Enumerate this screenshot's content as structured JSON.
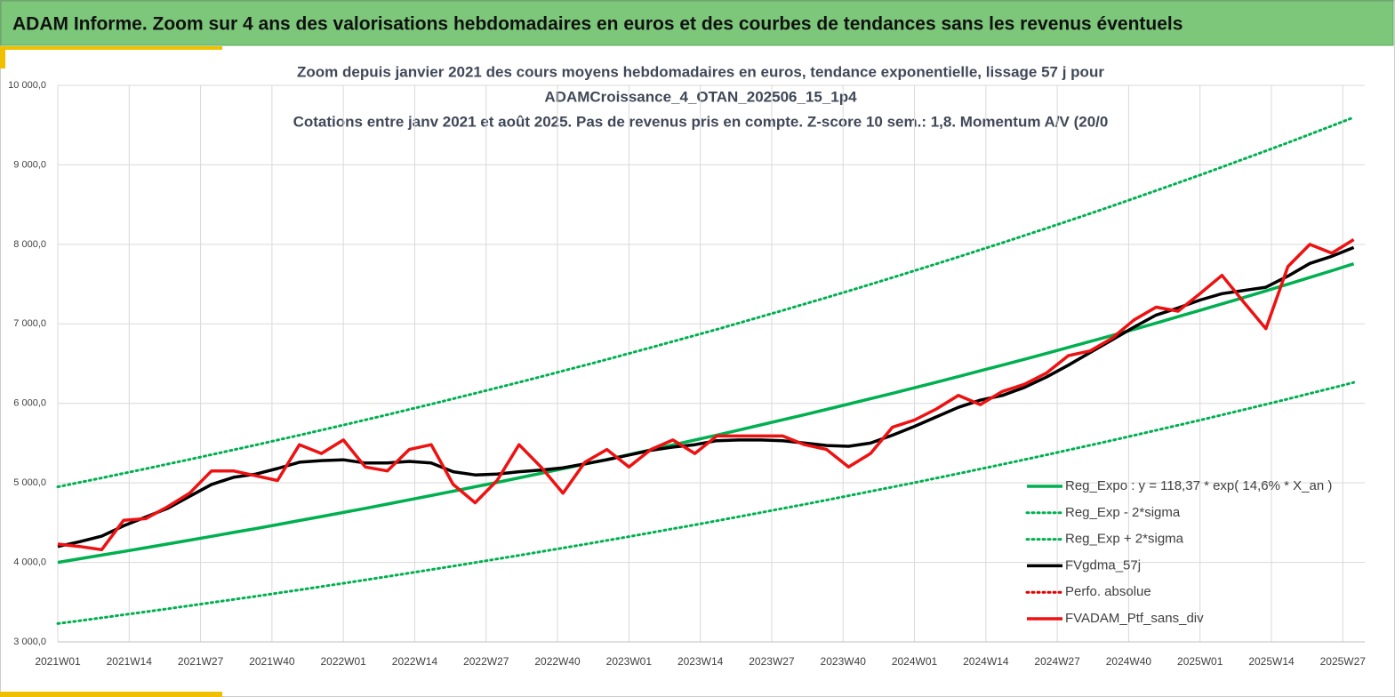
{
  "header": {
    "title": "ADAM Informe. Zoom sur 4 ans des valorisations hebdomadaires en euros et des courbes de tendances sans les revenus éventuels"
  },
  "chart_data": {
    "type": "line",
    "title": [
      "Zoom depuis janvier 2021 des cours moyens hebdomadaires  en euros, tendance exponentielle, lissage 57 j pour",
      "ADAMCroissance_4_OTAN_202506_15_1p4",
      "Cotations entre janv 2021 et août 2025. Pas de revenus pris en compte. Z-score 10 sem.: 1,8. Momentum A/V (20/0"
    ],
    "x": [
      0,
      4,
      8,
      12,
      16,
      20,
      24,
      28,
      32,
      36,
      40,
      44,
      48,
      52,
      56,
      60,
      64,
      68,
      72,
      76,
      80,
      84,
      88,
      92,
      96,
      100,
      104,
      108,
      112,
      116,
      120,
      124,
      128,
      132,
      136,
      140,
      144,
      148,
      152,
      156,
      160,
      164,
      168,
      172,
      176,
      180,
      184,
      188,
      192,
      196,
      200,
      204,
      208,
      212,
      216,
      220,
      224,
      228,
      232,
      236
    ],
    "xlim": [
      0,
      238
    ],
    "xticks": [
      {
        "value": 0,
        "label": "2021W01"
      },
      {
        "value": 13,
        "label": "2021W14"
      },
      {
        "value": 26,
        "label": "2021W27"
      },
      {
        "value": 39,
        "label": "2021W40"
      },
      {
        "value": 52,
        "label": "2022W01"
      },
      {
        "value": 65,
        "label": "2022W14"
      },
      {
        "value": 78,
        "label": "2022W27"
      },
      {
        "value": 91,
        "label": "2022W40"
      },
      {
        "value": 104,
        "label": "2023W01"
      },
      {
        "value": 117,
        "label": "2023W14"
      },
      {
        "value": 130,
        "label": "2023W27"
      },
      {
        "value": 143,
        "label": "2023W40"
      },
      {
        "value": 156,
        "label": "2024W01"
      },
      {
        "value": 169,
        "label": "2024W14"
      },
      {
        "value": 182,
        "label": "2024W27"
      },
      {
        "value": 195,
        "label": "2024W40"
      },
      {
        "value": 208,
        "label": "2025W01"
      },
      {
        "value": 221,
        "label": "2025W14"
      },
      {
        "value": 234,
        "label": "2025W27"
      }
    ],
    "ylim": [
      3000,
      10000
    ],
    "yticks": [
      {
        "value": 3000,
        "label": "3 000,0"
      },
      {
        "value": 4000,
        "label": "4 000,0"
      },
      {
        "value": 5000,
        "label": "5 000,0"
      },
      {
        "value": 6000,
        "label": "6 000,0"
      },
      {
        "value": 7000,
        "label": "7 000,0"
      },
      {
        "value": 8000,
        "label": "8 000,0"
      },
      {
        "value": 9000,
        "label": "9 000,0"
      },
      {
        "value": 10000,
        "label": "10 000,0"
      }
    ],
    "grid": true,
    "legend": "lower-right",
    "series": [
      {
        "name": "Reg_Expo : y = 118,37 * exp( 14,6% *  X_an )",
        "color": "#00b050",
        "style": "solid",
        "values": [
          4000,
          4045,
          4091,
          4137,
          4184,
          4231,
          4279,
          4327,
          4376,
          4425,
          4475,
          4526,
          4577,
          4628,
          4680,
          4733,
          4787,
          4841,
          4895,
          4951,
          5006,
          5063,
          5120,
          5178,
          5236,
          5295,
          5355,
          5416,
          5477,
          5539,
          5601,
          5664,
          5728,
          5793,
          5858,
          5924,
          5991,
          6059,
          6127,
          6196,
          6266,
          6337,
          6409,
          6481,
          6554,
          6628,
          6703,
          6778,
          6855,
          6932,
          7010,
          7090,
          7170,
          7251,
          7332,
          7415,
          7499,
          7583,
          7669,
          7756
        ]
      },
      {
        "name": "Reg_Exp - 2*sigma",
        "color": "#00b050",
        "style": "dotted",
        "values": [
          3230,
          3266,
          3303,
          3341,
          3378,
          3416,
          3455,
          3494,
          3533,
          3573,
          3614,
          3654,
          3696,
          3737,
          3779,
          3822,
          3865,
          3909,
          3953,
          3998,
          4043,
          4088,
          4135,
          4181,
          4228,
          4276,
          4324,
          4373,
          4423,
          4472,
          4523,
          4574,
          4626,
          4678,
          4730,
          4784,
          4838,
          4893,
          4948,
          5003,
          5060,
          5117,
          5175,
          5233,
          5292,
          5352,
          5413,
          5474,
          5535,
          5598,
          5661,
          5725,
          5789,
          5855,
          5921,
          5988,
          6055,
          6124,
          6193,
          6263
        ]
      },
      {
        "name": "Reg_Exp + 2*sigma",
        "color": "#00b050",
        "style": "dotted",
        "values": [
          4950,
          5006,
          5062,
          5120,
          5177,
          5236,
          5295,
          5355,
          5415,
          5476,
          5538,
          5600,
          5664,
          5727,
          5792,
          5857,
          5924,
          5990,
          6058,
          6126,
          6196,
          6265,
          6336,
          6408,
          6480,
          6553,
          6627,
          6702,
          6778,
          6854,
          6931,
          7010,
          7089,
          7169,
          7250,
          7331,
          7414,
          7498,
          7582,
          7668,
          7755,
          7842,
          7931,
          8020,
          8111,
          8202,
          8295,
          8388,
          8483,
          8579,
          8676,
          8773,
          8872,
          8972,
          9074,
          9176,
          9279,
          9384,
          9490,
          9598
        ]
      },
      {
        "name": "FVgdma_57j",
        "color": "#000000",
        "style": "solid",
        "values": [
          4200,
          4260,
          4330,
          4460,
          4570,
          4680,
          4830,
          4980,
          5070,
          5110,
          5180,
          5260,
          5280,
          5290,
          5250,
          5250,
          5270,
          5250,
          5140,
          5100,
          5110,
          5140,
          5160,
          5190,
          5240,
          5290,
          5350,
          5410,
          5450,
          5480,
          5530,
          5540,
          5540,
          5530,
          5500,
          5470,
          5460,
          5500,
          5600,
          5710,
          5830,
          5950,
          6040,
          6100,
          6200,
          6330,
          6480,
          6640,
          6800,
          6960,
          7110,
          7200,
          7300,
          7380,
          7420,
          7460,
          7600,
          7760,
          7850,
          7960
        ]
      },
      {
        "name": "Perfo. absolue",
        "color": "#e00000",
        "style": "dotted",
        "values": [
          null,
          null,
          null,
          null,
          null,
          null,
          null,
          null,
          null,
          null,
          null,
          null,
          null,
          null,
          null,
          null,
          null,
          null,
          null,
          null,
          null,
          null,
          null,
          null,
          null,
          null,
          null,
          null,
          null,
          null,
          null,
          null,
          null,
          null,
          null,
          null,
          null,
          null,
          null,
          null,
          null,
          null,
          null,
          null,
          null,
          null,
          null,
          null,
          null,
          null,
          null,
          null,
          null,
          null,
          null,
          null,
          null,
          null,
          null,
          null
        ]
      },
      {
        "name": "FVADAM_Ptf_sans_div",
        "color": "#ee1111",
        "style": "solid",
        "values": [
          4230,
          4200,
          4160,
          4530,
          4550,
          4700,
          4870,
          5150,
          5150,
          5090,
          5030,
          5480,
          5370,
          5540,
          5200,
          5150,
          5420,
          5480,
          4980,
          4750,
          5030,
          5480,
          5200,
          4870,
          5260,
          5420,
          5200,
          5420,
          5540,
          5370,
          5590,
          5590,
          5590,
          5590,
          5480,
          5420,
          5200,
          5370,
          5700,
          5790,
          5930,
          6100,
          5985,
          6150,
          6240,
          6380,
          6600,
          6660,
          6820,
          7050,
          7210,
          7160,
          7380,
          7610,
          7270,
          6940,
          7720,
          8000,
          7890,
          8060
        ]
      }
    ]
  }
}
